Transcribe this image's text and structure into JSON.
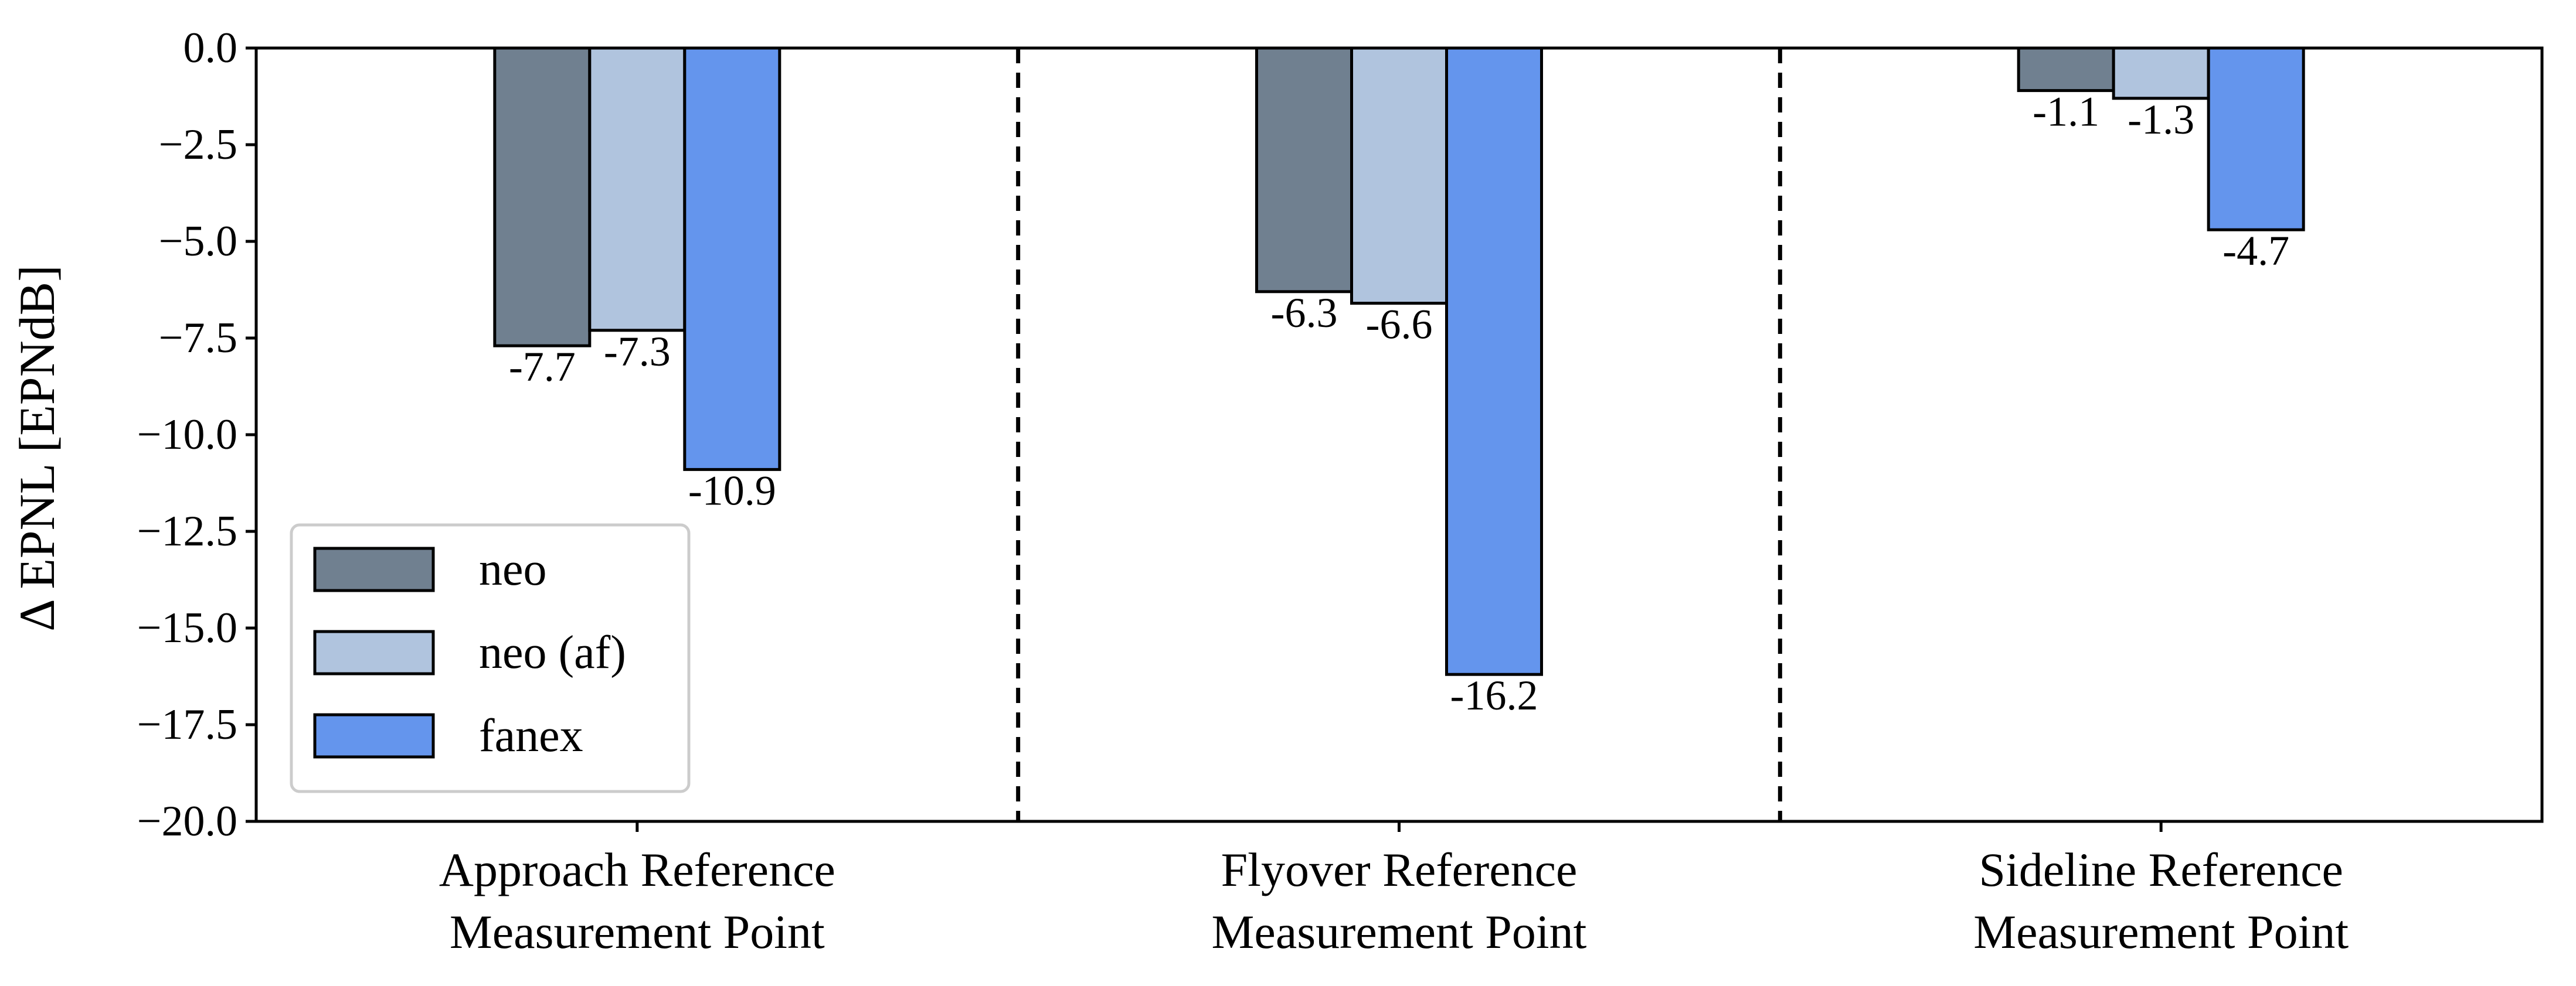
{
  "chart_data": {
    "type": "bar",
    "categories": [
      [
        "Approach Reference",
        "Measurement Point"
      ],
      [
        "Flyover Reference",
        "Measurement Point"
      ],
      [
        "Sideline Reference",
        "Measurement Point"
      ]
    ],
    "series": [
      {
        "name": "neo",
        "color": "#708090",
        "values": [
          -7.7,
          -6.3,
          -1.1
        ],
        "labels": [
          "-7.7",
          "-6.3",
          "-1.1"
        ]
      },
      {
        "name": "neo (af)",
        "color": "#B0C4DE",
        "values": [
          -7.3,
          -6.6,
          -1.3
        ],
        "labels": [
          "-7.3",
          "-6.6",
          "-1.3"
        ]
      },
      {
        "name": "fanex",
        "color": "#6495ED",
        "values": [
          -10.9,
          -16.2,
          -4.7
        ],
        "labels": [
          "-10.9",
          "-16.2",
          "-4.7"
        ]
      }
    ],
    "ylabel": "Δ EPNL  [EPNdB]",
    "xlabel": "",
    "title": "",
    "ylim": [
      -20.0,
      0.0
    ],
    "yticks": [
      0.0,
      -2.5,
      -5.0,
      -7.5,
      -10.0,
      -12.5,
      -15.0,
      -17.5,
      -20.0
    ],
    "ytick_labels": [
      "0.0",
      "−2.5",
      "−5.0",
      "−7.5",
      "−10.0",
      "−12.5",
      "−15.0",
      "−17.5",
      "−20.0"
    ],
    "separators": "dashed vertical lines between categories",
    "legend_position": "lower-left",
    "grid": false
  }
}
